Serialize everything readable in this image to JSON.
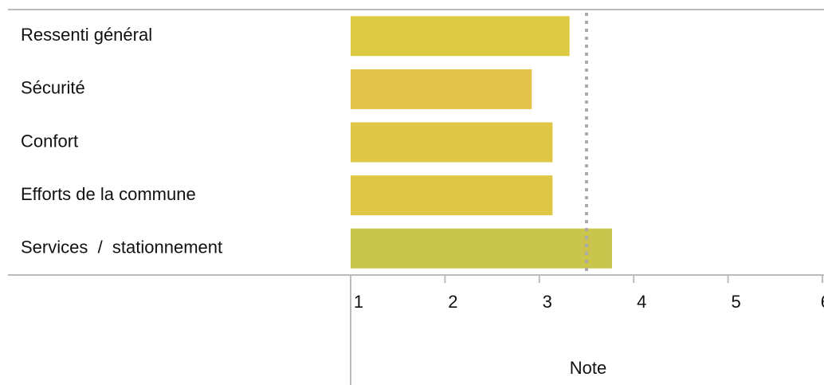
{
  "chart_data": {
    "type": "bar",
    "orientation": "horizontal",
    "categories": [
      "Ressenti général",
      "Sécurité",
      "Confort",
      "Efforts de la commune",
      "Services  /  stationnement"
    ],
    "values": [
      3.32,
      2.92,
      3.14,
      3.14,
      3.77
    ],
    "colors": [
      "#dccb42",
      "#e5c24b",
      "#dfc745",
      "#dfc745",
      "#c8c44c"
    ],
    "xlim": [
      1,
      6
    ],
    "xticks": [
      1,
      2,
      3,
      4,
      5,
      6
    ],
    "xlabel": "Note",
    "reference": 3.5
  }
}
